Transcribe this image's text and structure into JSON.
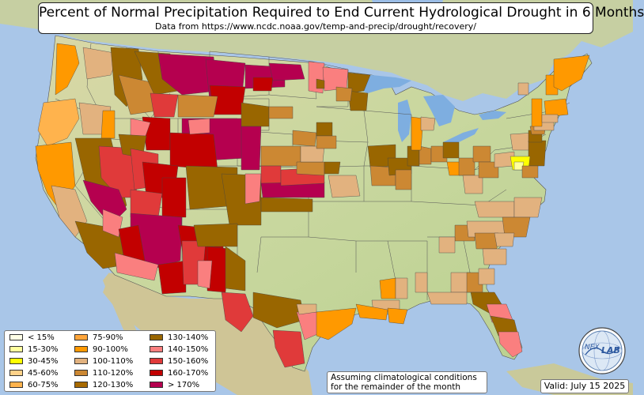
{
  "title": "Percent of Normal Precipitation Required to End Current Hydrological Drought in 6 Months",
  "subtitle": "Data from https://www.ncdc.noaa.gov/temp-and-precip/drought/recovery/",
  "legend": {
    "items": [
      {
        "label": "< 15%",
        "color": "#ffffe6"
      },
      {
        "label": "15-30%",
        "color": "#ffff9e"
      },
      {
        "label": "30-45%",
        "color": "#ffff00"
      },
      {
        "label": "45-60%",
        "color": "#ffd28a"
      },
      {
        "label": "60-75%",
        "color": "#ffb34d"
      },
      {
        "label": "75-90%",
        "color": "#ffa53a"
      },
      {
        "label": "90-100%",
        "color": "#ff9900"
      },
      {
        "label": "100-110%",
        "color": "#e2b27f"
      },
      {
        "label": "110-120%",
        "color": "#cc8833"
      },
      {
        "label": "120-130%",
        "color": "#a86a00"
      },
      {
        "label": "130-140%",
        "color": "#996600"
      },
      {
        "label": "140-150%",
        "color": "#fa7f7f"
      },
      {
        "label": "150-160%",
        "color": "#e03a3a"
      },
      {
        "label": "160-170%",
        "color": "#c20000"
      },
      {
        "label": "> 170%",
        "color": "#b5004f"
      }
    ]
  },
  "note": {
    "line1": "Assuming climatological conditions",
    "line2": "for the remainder of the month"
  },
  "valid_label": "Valid: July 15 2025",
  "logo_text": {
    "left": "NEX",
    "right": "LAB"
  }
}
